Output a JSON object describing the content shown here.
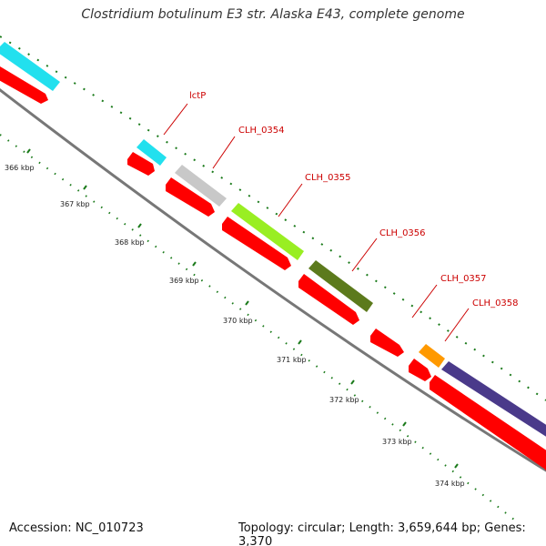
{
  "title": "Clostridium botulinum E3 str. Alaska E43, complete genome",
  "footer": {
    "accession": "Accession: NC_010723",
    "summary": "Topology: circular; Length: 3,659,644 bp; Genes: 3,370"
  },
  "colors": {
    "backbone": "#777777",
    "cds": "#ff0000",
    "tick": "#1a7a1a",
    "label": "#cc0000",
    "cyan": "#22e0ee",
    "gray": "#c8c8c8",
    "lime": "#99ee22",
    "olive": "#5c7a1c",
    "orange": "#ff9900",
    "purple": "#4a3a8a"
  },
  "kbp_labels": [
    "366 kbp",
    "367 kbp",
    "368 kbp",
    "369 kbp",
    "370 kbp",
    "371 kbp",
    "372 kbp",
    "373 kbp",
    "374 kbp"
  ],
  "gene_labels": [
    "lctP",
    "CLH_0354",
    "CLH_0355",
    "CLH_0356",
    "CLH_0357",
    "CLH_0358"
  ]
}
